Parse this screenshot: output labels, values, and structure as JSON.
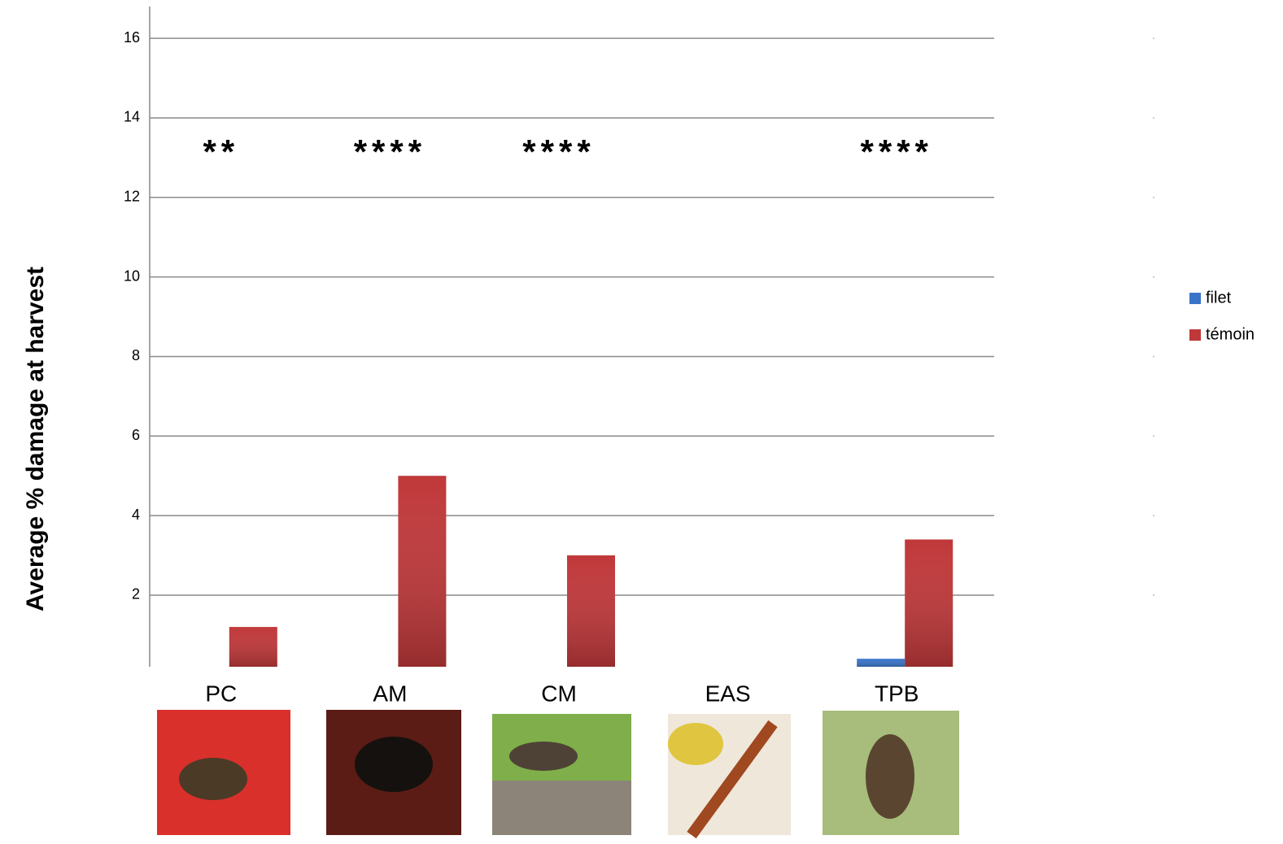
{
  "chart_data": {
    "type": "bar",
    "y_label": "Average % damage at harvest",
    "categories": [
      "PC",
      "AM",
      "CM",
      "EAS",
      "TPB"
    ],
    "series": [
      {
        "name": "filet",
        "color": "#3a74c8",
        "values": [
          0,
          0,
          0,
          0,
          0.4
        ]
      },
      {
        "name": "témoin",
        "color": "#c0383a",
        "values": [
          1.2,
          5.0,
          3.0,
          0,
          3.4
        ]
      }
    ],
    "ylim": [
      0.2,
      16.8
    ],
    "yticks": [
      2,
      4,
      6,
      8,
      10,
      12,
      14,
      16
    ],
    "grid": true,
    "legend": "right",
    "annotations": [
      {
        "text": "**",
        "x": "PC",
        "y": 13.2
      },
      {
        "text": "****",
        "x": "AM",
        "y": 13.2
      },
      {
        "text": "****",
        "x": "CM",
        "y": 13.2
      },
      {
        "text": "****",
        "x": "TPB",
        "y": 13.2
      }
    ]
  }
}
